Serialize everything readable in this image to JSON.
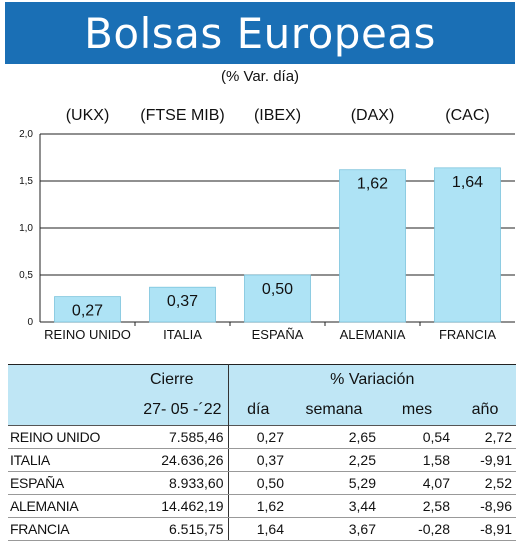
{
  "title": "Bolsas Europeas",
  "subtitle": "(% Var. día)",
  "chart_data": {
    "type": "bar",
    "indices": [
      "(UKX)",
      "(FTSE MIB)",
      "(IBEX)",
      "(DAX)",
      "(CAC)"
    ],
    "categories": [
      "REINO UNIDO",
      "ITALIA",
      "ESPAÑA",
      "ALEMANIA",
      "FRANCIA"
    ],
    "values": [
      0.27,
      0.37,
      0.5,
      1.62,
      1.64
    ],
    "value_labels": [
      "0,27",
      "0,37",
      "0,50",
      "1,62",
      "1,64"
    ],
    "yticks": [
      "0",
      "0,5",
      "1,0",
      "1,5",
      "2,0"
    ],
    "ylim": [
      0,
      2.0
    ],
    "grid": true,
    "bar_color": "#aee3f5"
  },
  "table": {
    "group_headers": [
      "Cierre",
      "% Variación"
    ],
    "date_header": "27- 05 -´22",
    "sub_headers": [
      "día",
      "semana",
      "mes",
      "año"
    ],
    "rows": [
      {
        "name": "REINO UNIDO",
        "cierre": "7.585,46",
        "dia": "0,27",
        "semana": "2,65",
        "mes": "0,54",
        "ano": "2,72"
      },
      {
        "name": "ITALIA",
        "cierre": "24.636,26",
        "dia": "0,37",
        "semana": "2,25",
        "mes": "1,58",
        "ano": "-9,91"
      },
      {
        "name": "ESPAÑA",
        "cierre": "8.933,60",
        "dia": "0,50",
        "semana": "5,29",
        "mes": "4,07",
        "ano": "2,52"
      },
      {
        "name": "ALEMANIA",
        "cierre": "14.462,19",
        "dia": "1,62",
        "semana": "3,44",
        "mes": "2,58",
        "ano": "-8,96"
      },
      {
        "name": "FRANCIA",
        "cierre": "6.515,75",
        "dia": "1,64",
        "semana": "3,67",
        "mes": "-0,28",
        "ano": "-8,91"
      }
    ]
  },
  "colors": {
    "banner": "#1a6fb5",
    "header_fill": "#bfe6f5"
  }
}
